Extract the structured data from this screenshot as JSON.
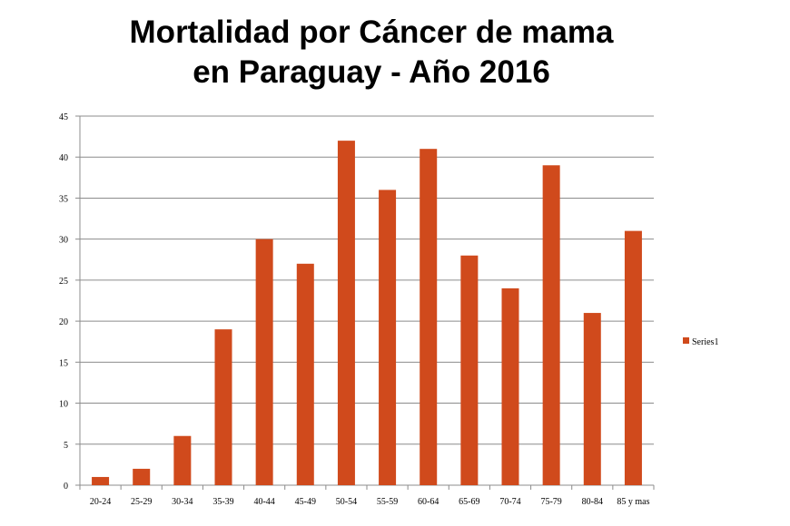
{
  "chart_data": {
    "type": "bar",
    "title_lines": [
      "Mortalidad por Cáncer de mama",
      "en Paraguay - Año 2016"
    ],
    "categories": [
      "20-24",
      "25-29",
      "30-34",
      "35-39",
      "40-44",
      "45-49",
      "50-54",
      "55-59",
      "60-64",
      "65-69",
      "70-74",
      "75-79",
      "80-84",
      "85 y mas"
    ],
    "series": [
      {
        "name": "Series1",
        "values": [
          1,
          2,
          6,
          19,
          30,
          27,
          42,
          36,
          41,
          28,
          24,
          39,
          21,
          31
        ]
      }
    ],
    "ylim": [
      0,
      45
    ],
    "yticks": [
      0,
      5,
      10,
      15,
      20,
      25,
      30,
      35,
      40,
      45
    ],
    "grid": true,
    "legend_position": "right",
    "bar_color": "#d04a1c"
  }
}
